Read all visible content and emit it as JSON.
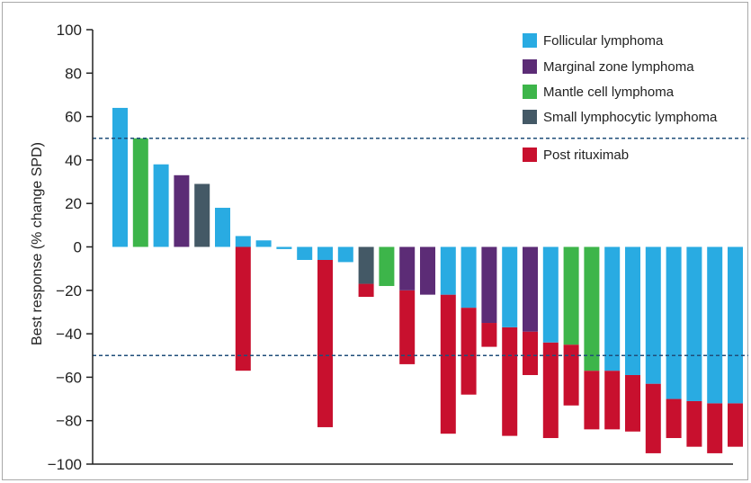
{
  "chart_data": {
    "type": "bar",
    "title": "",
    "xlabel": "",
    "ylabel": "Best response (% change SPD)",
    "ylim": [
      -100,
      100
    ],
    "yticks": [
      100,
      80,
      60,
      40,
      20,
      0,
      -20,
      -40,
      -60,
      -80,
      -100
    ],
    "reference_lines": [
      50,
      -50
    ],
    "grid": false,
    "legend_position": "top-right",
    "colors": {
      "follicular": "#29abe2",
      "marginal": "#5c2c76",
      "mantle": "#3db54a",
      "small": "#445966",
      "post": "#c8102e",
      "refline": "#1f4e79"
    },
    "legend": [
      {
        "key": "follicular",
        "label": "Follicular lymphoma"
      },
      {
        "key": "marginal",
        "label": "Marginal zone lymphoma"
      },
      {
        "key": "mantle",
        "label": "Mantle cell lymphoma"
      },
      {
        "key": "small",
        "label": "Small lymphocytic lymphoma"
      },
      {
        "key": "post",
        "label": "Post rituximab"
      }
    ],
    "bars": [
      {
        "value": 64,
        "subtype": "follicular",
        "post_rituximab": null
      },
      {
        "value": 50,
        "subtype": "mantle",
        "post_rituximab": null
      },
      {
        "value": 38,
        "subtype": "follicular",
        "post_rituximab": null
      },
      {
        "value": 33,
        "subtype": "marginal",
        "post_rituximab": null
      },
      {
        "value": 29,
        "subtype": "small",
        "post_rituximab": null
      },
      {
        "value": 18,
        "subtype": "follicular",
        "post_rituximab": null
      },
      {
        "value": 5,
        "subtype": "follicular",
        "post_rituximab": -57
      },
      {
        "value": 3,
        "subtype": "follicular",
        "post_rituximab": null
      },
      {
        "value": -1,
        "subtype": "follicular",
        "post_rituximab": null
      },
      {
        "value": -6,
        "subtype": "follicular",
        "post_rituximab": null
      },
      {
        "value": -6,
        "subtype": "follicular",
        "post_rituximab": -83
      },
      {
        "value": -7,
        "subtype": "follicular",
        "post_rituximab": null
      },
      {
        "value": -17,
        "subtype": "small",
        "post_rituximab": -23
      },
      {
        "value": -18,
        "subtype": "mantle",
        "post_rituximab": null
      },
      {
        "value": -20,
        "subtype": "marginal",
        "post_rituximab": -54
      },
      {
        "value": -22,
        "subtype": "marginal",
        "post_rituximab": null
      },
      {
        "value": -22,
        "subtype": "follicular",
        "post_rituximab": -86
      },
      {
        "value": -28,
        "subtype": "follicular",
        "post_rituximab": -68
      },
      {
        "value": -35,
        "subtype": "marginal",
        "post_rituximab": -46
      },
      {
        "value": -37,
        "subtype": "follicular",
        "post_rituximab": -87
      },
      {
        "value": -39,
        "subtype": "marginal",
        "post_rituximab": -59
      },
      {
        "value": -44,
        "subtype": "follicular",
        "post_rituximab": -88
      },
      {
        "value": -45,
        "subtype": "mantle",
        "post_rituximab": -73
      },
      {
        "value": -57,
        "subtype": "mantle",
        "post_rituximab": -84
      },
      {
        "value": -57,
        "subtype": "follicular",
        "post_rituximab": -84
      },
      {
        "value": -59,
        "subtype": "follicular",
        "post_rituximab": -85
      },
      {
        "value": -63,
        "subtype": "follicular",
        "post_rituximab": -95
      },
      {
        "value": -70,
        "subtype": "follicular",
        "post_rituximab": -88
      },
      {
        "value": -71,
        "subtype": "follicular",
        "post_rituximab": -92
      },
      {
        "value": -72,
        "subtype": "follicular",
        "post_rituximab": -95
      },
      {
        "value": -72,
        "subtype": "follicular",
        "post_rituximab": -92
      }
    ]
  }
}
